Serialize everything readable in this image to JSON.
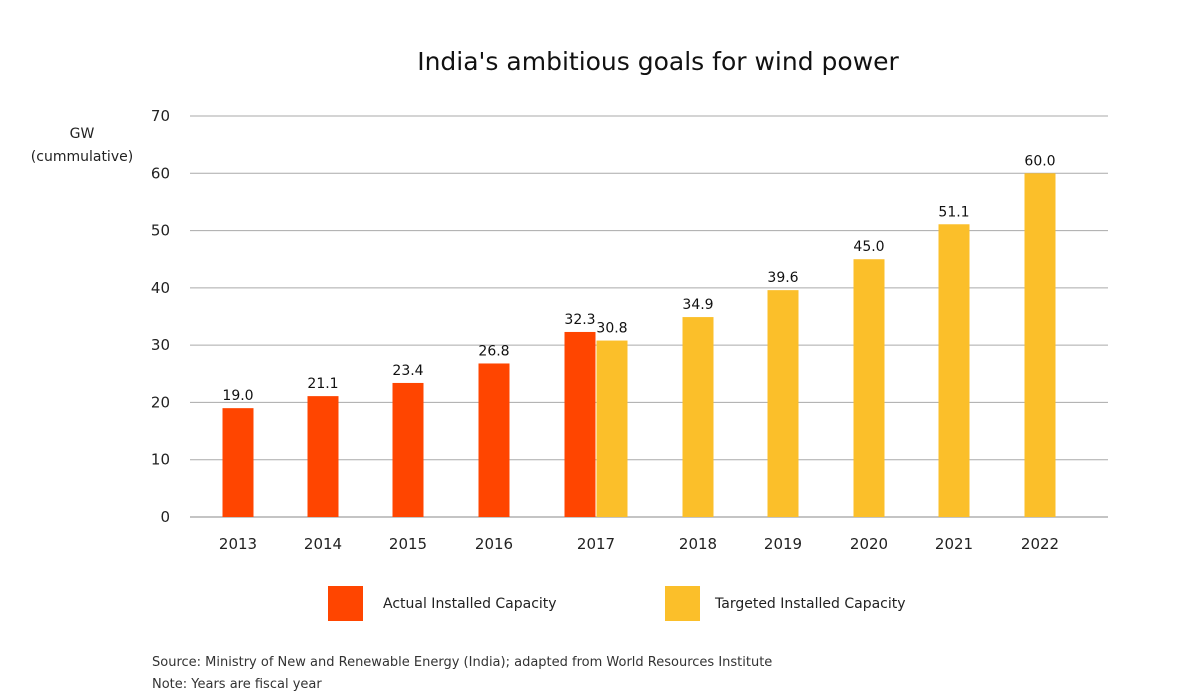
{
  "chart_data": {
    "type": "bar",
    "title": "India's ambitious goals for wind power",
    "ylabel_lines": [
      "GW",
      "(cummulative)"
    ],
    "xlabel": "",
    "ylim": [
      0,
      70
    ],
    "yticks": [
      0,
      10,
      20,
      30,
      40,
      50,
      60,
      70
    ],
    "grid": true,
    "legend_position": "bottom",
    "categories": [
      "2013",
      "2014",
      "2015",
      "2016",
      "2017",
      "2018",
      "2019",
      "2020",
      "2021",
      "2022"
    ],
    "series": [
      {
        "name": "Actual Installed Capacity",
        "color": "#ff4500",
        "values": [
          19.0,
          21.1,
          23.4,
          26.8,
          32.3,
          null,
          null,
          null,
          null,
          null
        ],
        "labels": [
          "19.0",
          "21.1",
          "23.4",
          "26.8",
          "32.3",
          null,
          null,
          null,
          null,
          null
        ]
      },
      {
        "name": "Targeted Installed Capacity",
        "color": "#fbbf2a",
        "values": [
          null,
          null,
          null,
          null,
          30.8,
          34.9,
          39.6,
          45.0,
          51.1,
          60.0
        ],
        "labels": [
          null,
          null,
          null,
          null,
          "30.8",
          "34.9",
          "39.6",
          "45.0",
          "51.1",
          "60.0"
        ]
      }
    ]
  },
  "notes": {
    "source": "Source: Ministry of New and Renewable Energy (India); adapted from World Resources Institute",
    "note": "Note: Years are fiscal year"
  }
}
